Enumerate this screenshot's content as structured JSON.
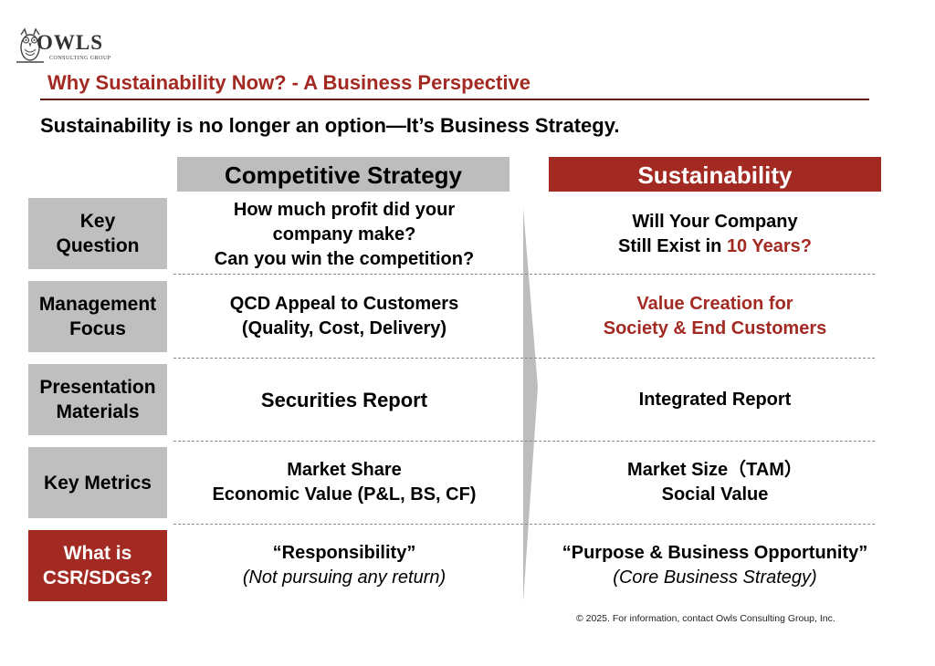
{
  "brand": {
    "name": "OWLS",
    "sub": "CONSULTING GROUP"
  },
  "title": "Why Sustainability Now? - A Business Perspective",
  "subtitle": "Sustainability is no longer an option—It’s Business Strategy.",
  "columns": {
    "left": "Competitive Strategy",
    "right": "Sustainability"
  },
  "rows": [
    {
      "label": [
        "Key",
        "Question"
      ],
      "left": [
        "How much profit did your",
        "company make?",
        "Can you win the competition?"
      ],
      "right": {
        "line1": "Will Your Company",
        "line2_prefix": "Still Exist in ",
        "line2_highlight": "10 Years?"
      }
    },
    {
      "label": [
        "Management",
        "Focus"
      ],
      "left": [
        "QCD Appeal to Customers",
        "(Quality, Cost, Delivery)"
      ],
      "right": [
        "Value Creation for",
        "Society & End Customers"
      ]
    },
    {
      "label": [
        "Presentation",
        "Materials"
      ],
      "left": [
        "Securities Report"
      ],
      "right": [
        "Integrated Report"
      ]
    },
    {
      "label": [
        "Key Metrics"
      ],
      "left": [
        "Market Share",
        "Economic Value (P&L, BS, CF)"
      ],
      "right": [
        "Market Size（TAM）",
        "Social Value"
      ]
    },
    {
      "label": [
        "What is",
        "CSR/SDGs?"
      ],
      "left": [
        "“Responsibility”",
        "(Not pursuing any return)"
      ],
      "right": [
        "“Purpose & Business Opportunity”",
        "(Core Business Strategy)"
      ]
    }
  ],
  "footer": "© 2025. For information, contact Owls Consulting Group, Inc.",
  "colors": {
    "accent": "#a32a22",
    "label_bg": "#bfbfbf",
    "rule": "#5a1a12"
  },
  "icons": {
    "logo": "owl-icon",
    "transition": "right-arrow-icon"
  }
}
